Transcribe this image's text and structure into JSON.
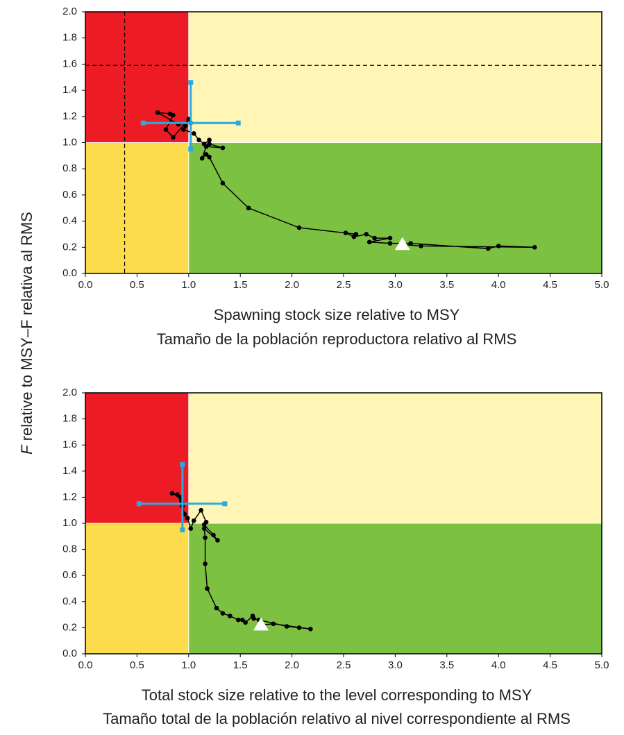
{
  "ylabel": {
    "emphasis": "F",
    "text": " relative to MSY–F relativa al RMS"
  },
  "chart_data": [
    {
      "type": "scatter",
      "xlabel": [
        "Spawning stock size relative to MSY",
        "Tamaño de la población reproductora relativo al RMS"
      ],
      "xlim": [
        0,
        5
      ],
      "ylim": [
        0,
        2
      ],
      "xticks": [
        {
          "value": 0,
          "label": "0.0"
        },
        {
          "value": 0.5,
          "label": "0.5"
        },
        {
          "value": 1,
          "label": "1.0"
        },
        {
          "value": 1.5,
          "label": "1.5"
        },
        {
          "value": 2,
          "label": "2.0"
        },
        {
          "value": 2.5,
          "label": "2.5"
        },
        {
          "value": 3,
          "label": "3.0"
        },
        {
          "value": 3.5,
          "label": "3.5"
        },
        {
          "value": 4,
          "label": "4.0"
        },
        {
          "value": 4.5,
          "label": "4.5"
        },
        {
          "value": 5,
          "label": "5.0"
        }
      ],
      "yticks": [
        {
          "value": 0,
          "label": "0.0"
        },
        {
          "value": 0.2,
          "label": "0.2"
        },
        {
          "value": 0.4,
          "label": "0.4"
        },
        {
          "value": 0.6,
          "label": "0.6"
        },
        {
          "value": 0.8,
          "label": "0.8"
        },
        {
          "value": 1,
          "label": "1.0"
        },
        {
          "value": 1.2,
          "label": "1.2"
        },
        {
          "value": 1.4,
          "label": "1.4"
        },
        {
          "value": 1.6,
          "label": "1.6"
        },
        {
          "value": 1.8,
          "label": "1.8"
        },
        {
          "value": 2,
          "label": "2.0"
        }
      ],
      "threshold": 1,
      "zone_colors": [
        "#ed1c24",
        "#fff5b5",
        "#fcdc4d",
        "#7dc142"
      ],
      "ref_lines": {
        "x": 0.38,
        "y": 1.59
      },
      "series": [
        {
          "color": "#000000",
          "x": [
            3.07,
            3.25,
            4.35,
            4.0,
            3.9,
            3.15,
            2.95,
            2.75,
            2.95,
            2.8,
            2.72,
            2.6,
            2.52,
            2.62,
            2.07,
            1.58,
            1.33,
            1.2,
            1.17,
            1.13,
            1.17,
            1.33,
            1.2,
            1.2,
            1.15,
            1.1,
            1.05,
            0.95,
            0.97,
            1.0,
            0.85,
            0.78,
            0.85,
            0.82,
            0.7,
            0.9,
            1.02
          ],
          "values": [
            0.22,
            0.21,
            0.2,
            0.21,
            0.19,
            0.23,
            0.23,
            0.24,
            0.27,
            0.27,
            0.3,
            0.28,
            0.31,
            0.3,
            0.35,
            0.5,
            0.69,
            0.89,
            0.91,
            0.88,
            0.97,
            0.96,
            0.99,
            1.02,
            0.99,
            1.02,
            1.07,
            1.1,
            1.13,
            1.18,
            1.04,
            1.1,
            1.21,
            1.22,
            1.23,
            1.14,
            1.15
          ]
        }
      ],
      "start_color": "#ffffff",
      "ci": {
        "x": [
          0.56,
          1.48
        ],
        "y": [
          0.95,
          1.46
        ],
        "color": "#29abe2"
      }
    },
    {
      "type": "scatter",
      "xlabel": [
        "Total stock size relative to the level corresponding to MSY",
        "Tamaño total de la población relativo al nivel correspondiente al RMS"
      ],
      "xlim": [
        0,
        5
      ],
      "ylim": [
        0,
        2
      ],
      "xticks": [
        {
          "value": 0,
          "label": "0.0"
        },
        {
          "value": 0.5,
          "label": "0.5"
        },
        {
          "value": 1,
          "label": "1.0"
        },
        {
          "value": 1.5,
          "label": "1.5"
        },
        {
          "value": 2,
          "label": "2.0"
        },
        {
          "value": 2.5,
          "label": "2.5"
        },
        {
          "value": 3,
          "label": "3.0"
        },
        {
          "value": 3.5,
          "label": "3.5"
        },
        {
          "value": 4,
          "label": "4.0"
        },
        {
          "value": 4.5,
          "label": "4.5"
        },
        {
          "value": 5,
          "label": "5.0"
        }
      ],
      "yticks": [
        {
          "value": 0,
          "label": "0.0"
        },
        {
          "value": 0.2,
          "label": "0.2"
        },
        {
          "value": 0.4,
          "label": "0.4"
        },
        {
          "value": 0.6,
          "label": "0.6"
        },
        {
          "value": 0.8,
          "label": "0.8"
        },
        {
          "value": 1,
          "label": "1.0"
        },
        {
          "value": 1.2,
          "label": "1.2"
        },
        {
          "value": 1.4,
          "label": "1.4"
        },
        {
          "value": 1.6,
          "label": "1.6"
        },
        {
          "value": 1.8,
          "label": "1.8"
        },
        {
          "value": 2,
          "label": "2.0"
        }
      ],
      "threshold": 1,
      "zone_colors": [
        "#ed1c24",
        "#fff5b5",
        "#fcdc4d",
        "#7dc142"
      ],
      "series": [
        {
          "color": "#000000",
          "x": [
            1.7,
            1.82,
            2.18,
            2.07,
            1.95,
            1.68,
            1.63,
            1.62,
            1.55,
            1.52,
            1.48,
            1.4,
            1.33,
            1.27,
            1.18,
            1.16,
            1.16,
            1.15,
            1.28,
            1.24,
            1.15,
            1.17,
            1.12,
            1.05,
            1.02,
            0.99,
            0.96,
            0.94,
            0.93,
            0.89,
            0.84,
            0.92,
            0.94
          ],
          "values": [
            0.22,
            0.23,
            0.19,
            0.2,
            0.21,
            0.26,
            0.27,
            0.29,
            0.24,
            0.26,
            0.26,
            0.29,
            0.31,
            0.35,
            0.5,
            0.69,
            0.89,
            0.96,
            0.87,
            0.91,
            0.99,
            1.01,
            1.1,
            1.02,
            0.96,
            1.04,
            1.07,
            1.13,
            1.17,
            1.22,
            1.23,
            1.2,
            1.15
          ]
        }
      ],
      "start_color": "#ffffff",
      "ci": {
        "x": [
          0.52,
          1.35
        ],
        "y": [
          0.95,
          1.45
        ],
        "color": "#29abe2"
      }
    }
  ]
}
